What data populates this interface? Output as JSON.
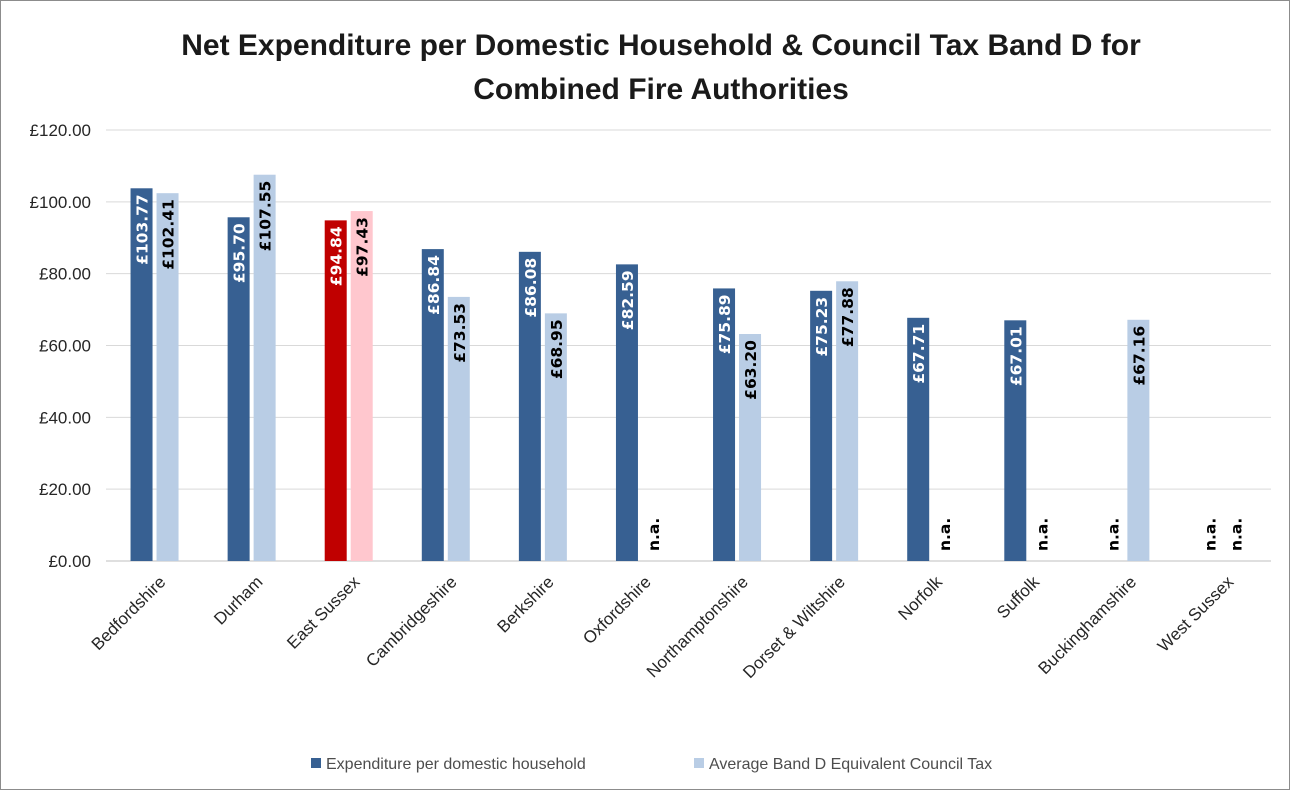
{
  "chart_data": {
    "type": "bar",
    "title_lines": [
      "Net Expenditure per Domestic Household & Council Tax Band D for",
      "Combined Fire Authorities"
    ],
    "xlabel": "",
    "ylabel": "",
    "ylim": [
      0,
      120
    ],
    "y_ticks": [
      {
        "value": 0,
        "label": "£0.00"
      },
      {
        "value": 20,
        "label": "£20.00"
      },
      {
        "value": 40,
        "label": "£40.00"
      },
      {
        "value": 60,
        "label": "£60.00"
      },
      {
        "value": 80,
        "label": "£80.00"
      },
      {
        "value": 100,
        "label": "£100.00"
      },
      {
        "value": 120,
        "label": "£120.00"
      }
    ],
    "grid": true,
    "legend_position": "bottom",
    "categories": [
      "Bedfordshire",
      "Durham",
      "East Sussex",
      "Cambridgeshire",
      "Berkshire",
      "Oxfordshire",
      "Northamptonshire",
      "Dorset & Wiltshire",
      "Norfolk",
      "Suffolk",
      "Buckinghamshire",
      "West Sussex"
    ],
    "series": [
      {
        "name": "Expenditure per domestic household",
        "color": "#376092",
        "label_color": "#ffffff",
        "values": [
          103.77,
          95.7,
          94.84,
          86.84,
          86.08,
          82.59,
          75.89,
          75.23,
          67.71,
          67.01,
          null,
          null
        ],
        "labels": [
          "£103.77",
          "£95.70",
          "£94.84",
          "£86.84",
          "£86.08",
          "£82.59",
          "£75.89",
          "£75.23",
          "£67.71",
          "£67.01",
          "n.a.",
          "n.a."
        ]
      },
      {
        "name": "Average Band D Equivalent Council Tax",
        "color": "#b9cde5",
        "label_color": "#000000",
        "values": [
          102.41,
          107.55,
          97.43,
          73.53,
          68.95,
          null,
          63.2,
          77.88,
          null,
          null,
          67.16,
          null
        ],
        "labels": [
          "£102.41",
          "£107.55",
          "£97.43",
          "£73.53",
          "£68.95",
          "n.a.",
          "£63.20",
          "£77.88",
          "n.a.",
          "n.a.",
          "£67.16",
          "n.a."
        ]
      }
    ],
    "highlight": {
      "category": "East Sussex",
      "colors": [
        "#c00000",
        "#ffc7ce"
      ]
    }
  }
}
